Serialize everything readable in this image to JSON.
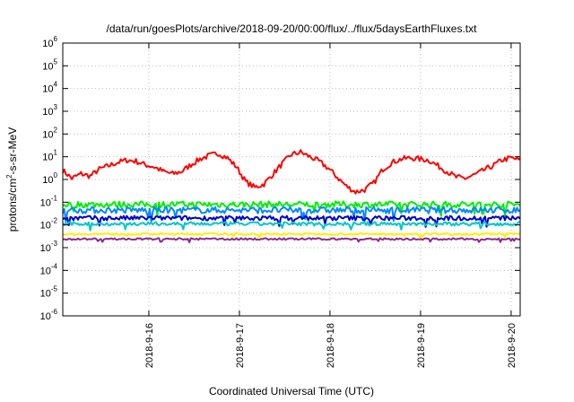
{
  "chart_data": {
    "type": "line",
    "title": "/data/run/goesPlots/archive/2018-09-20/00:00/flux/../flux/5daysEarthFluxes.txt",
    "xlabel": "Coordinated Universal Time (UTC)",
    "ylabel_main": "protons/cm",
    "ylabel_sup": "2",
    "ylabel_rest": "-s-sr-MeV",
    "y_scale": "log",
    "y_exponent_range": [
      -6,
      6
    ],
    "y_tick_base": "10",
    "y_tick_exponents": [
      "-6",
      "-5",
      "-4",
      "-3",
      "-2",
      "-1",
      "0",
      "1",
      "2",
      "3",
      "4",
      "5",
      "6"
    ],
    "x_range_days": [
      0,
      5.05
    ],
    "x_ticks": [
      {
        "label": "2018-9-16",
        "day": 0.95
      },
      {
        "label": "2018-9-17",
        "day": 1.95
      },
      {
        "label": "2018-9-18",
        "day": 2.95
      },
      {
        "label": "2018-9-19",
        "day": 3.95
      },
      {
        "label": "2018-9-20",
        "day": 4.95
      }
    ],
    "grid": true,
    "series": [
      {
        "color": "#ff0000",
        "width": 2,
        "log_values": [
          0.4,
          0.05,
          0.25,
          0.15,
          0.45,
          0.6,
          0.75,
          0.85,
          0.8,
          0.65,
          0.55,
          0.35,
          0.25,
          0.35,
          0.65,
          0.9,
          1.05,
          1.15,
          0.95,
          0.55,
          -0.1,
          -0.35,
          -0.2,
          0.25,
          0.7,
          1.1,
          1.2,
          1.0,
          0.8,
          0.5,
          0.1,
          -0.3,
          -0.55,
          -0.45,
          -0.15,
          0.45,
          0.75,
          0.9,
          0.95,
          0.9,
          0.85,
          0.6,
          0.35,
          0.1,
          0.05,
          0.2,
          0.4,
          0.6,
          0.85,
          0.95,
          0.85
        ],
        "noise": 0.12
      },
      {
        "color": "#00ee00",
        "width": 2,
        "base": -1.1,
        "noise": 0.14
      },
      {
        "color": "#0088ff",
        "width": 2,
        "base": -1.35,
        "noise": 0.14
      },
      {
        "color": "#0000cc",
        "width": 2,
        "base": -1.7,
        "noise": 0.1
      },
      {
        "color": "#00c8c8",
        "width": 2,
        "base": -1.95,
        "noise": 0.08
      },
      {
        "color": "#ffee00",
        "width": 2,
        "base": -2.4,
        "noise": 0.04
      },
      {
        "color": "#8b2a8b",
        "width": 2,
        "base": -2.62,
        "noise": 0.04
      }
    ]
  }
}
